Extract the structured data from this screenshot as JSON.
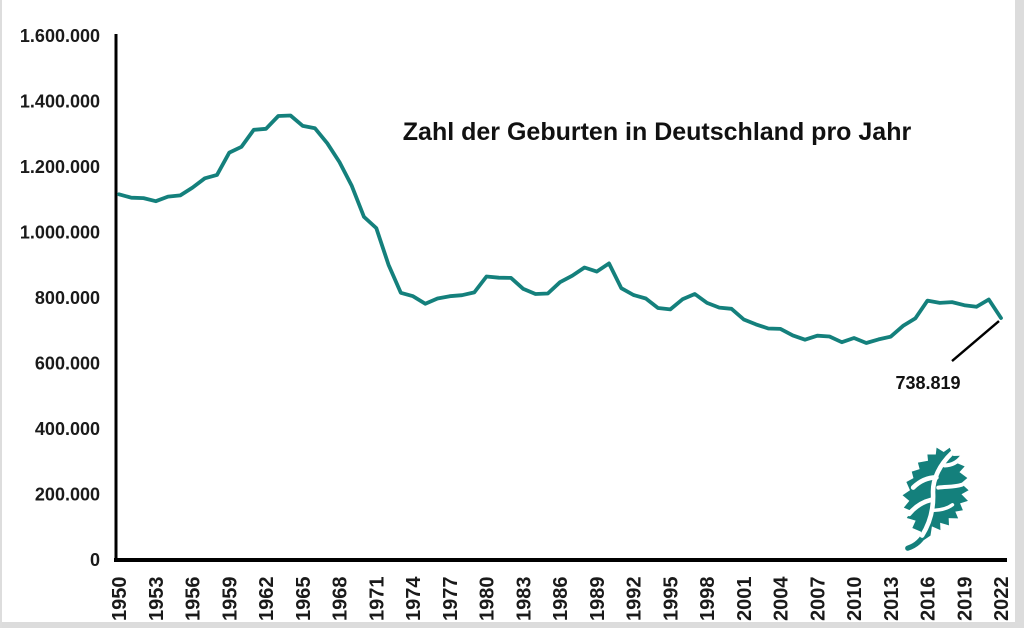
{
  "page": {
    "background": "#ffffff",
    "edge_color": "#dcdcdc"
  },
  "chart_data": {
    "type": "line",
    "title": "Zahl der Geburten in Deutschland pro Jahr",
    "xlabel": "",
    "ylabel": "",
    "grid": false,
    "legend": "none",
    "line_color": "#14807C",
    "axis_color": "#000000",
    "text_color": "#1a1a1a",
    "ylim": [
      0,
      1600000
    ],
    "xlim": [
      1950,
      2022
    ],
    "yticks": [
      0,
      200000,
      400000,
      600000,
      800000,
      1000000,
      1200000,
      1400000,
      1600000
    ],
    "ytick_labels": [
      "0",
      "200.000",
      "400.000",
      "600.000",
      "800.000",
      "1.000.000",
      "1.200.000",
      "1.400.000",
      "1.600.000"
    ],
    "xticks": [
      1950,
      1953,
      1956,
      1959,
      1962,
      1965,
      1968,
      1971,
      1974,
      1977,
      1980,
      1983,
      1986,
      1989,
      1992,
      1995,
      1998,
      2001,
      2004,
      2007,
      2010,
      2013,
      2016,
      2019,
      2022
    ],
    "x": [
      1950,
      1951,
      1952,
      1953,
      1954,
      1955,
      1956,
      1957,
      1958,
      1959,
      1960,
      1961,
      1962,
      1963,
      1964,
      1965,
      1966,
      1967,
      1968,
      1969,
      1970,
      1971,
      1972,
      1973,
      1974,
      1975,
      1976,
      1977,
      1978,
      1979,
      1980,
      1981,
      1982,
      1983,
      1984,
      1985,
      1986,
      1987,
      1988,
      1989,
      1990,
      1991,
      1992,
      1993,
      1994,
      1995,
      1996,
      1997,
      1998,
      1999,
      2000,
      2001,
      2002,
      2003,
      2004,
      2005,
      2006,
      2007,
      2008,
      2009,
      2010,
      2011,
      2012,
      2013,
      2014,
      2015,
      2016,
      2017,
      2018,
      2019,
      2020,
      2021,
      2022
    ],
    "series": [
      {
        "name": "Geburten in Deutschland",
        "values": [
          1116701,
          1106380,
          1105085,
          1095698,
          1109743,
          1113408,
          1137169,
          1165555,
          1175870,
          1243922,
          1261614,
          1313505,
          1316534,
          1355595,
          1357304,
          1325386,
          1318303,
          1272276,
          1214968,
          1142366,
          1047737,
          1013396,
          901657,
          815969,
          805500,
          782310,
          798334,
          805496,
          808619,
          817217,
          865789,
          862100,
          861275,
          827933,
          812292,
          813803,
          848232,
          867969,
          892993,
          880459,
          905675,
          830019,
          809114,
          798447,
          769603,
          765221,
          796013,
          812173,
          785034,
          770744,
          766999,
          734475,
          719250,
          706721,
          705622,
          685795,
          672724,
          684862,
          682514,
          665126,
          677947,
          662685,
          673544,
          682069,
          714927,
          737575,
          792131,
          784901,
          787523,
          778090,
          773144,
          795492,
          738819
        ]
      }
    ],
    "annotation": {
      "label": "738.819",
      "year": 2022,
      "value": 738819
    }
  },
  "logo": {
    "name": "leaf-logo",
    "color": "#14807C"
  }
}
